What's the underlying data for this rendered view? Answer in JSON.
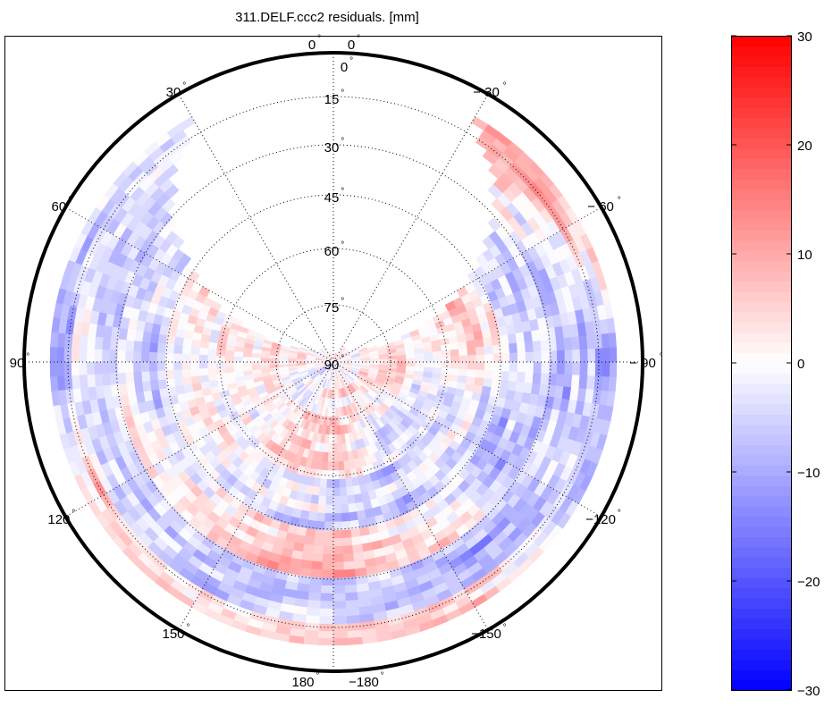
{
  "chart_data": {
    "type": "heatmap",
    "projection": "polar",
    "title": "311.DELF.ccc2 residuals. [mm]",
    "azimuth_ticks": [
      {
        "value": 0,
        "label": "0"
      },
      {
        "value": 30,
        "label": "30"
      },
      {
        "value": 60,
        "label": "60"
      },
      {
        "value": 90,
        "label": "90"
      },
      {
        "value": 120,
        "label": "120"
      },
      {
        "value": 150,
        "label": "150"
      },
      {
        "value": 180,
        "label": "180"
      },
      {
        "value": -150,
        "label": "−150"
      },
      {
        "value": -120,
        "label": "−120"
      },
      {
        "value": -90,
        "label": "− 90"
      },
      {
        "value": -60,
        "label": "− 60"
      },
      {
        "value": -30,
        "label": "− 30"
      }
    ],
    "azimuth_extra_labels": [
      {
        "value": 0,
        "label": "0"
      },
      {
        "value": 180,
        "label": "−180"
      }
    ],
    "elevation_ticks": [
      {
        "value": 0,
        "label": "0"
      },
      {
        "value": 15,
        "label": "15"
      },
      {
        "value": 30,
        "label": "30"
      },
      {
        "value": 45,
        "label": "45"
      },
      {
        "value": 60,
        "label": "60"
      },
      {
        "value": 75,
        "label": "75"
      },
      {
        "value": 90,
        "label": "90"
      }
    ],
    "degree_symbol": "°",
    "residual_grid": {
      "note": "approximate mean residual [mm] per elevation band (rows) and azimuth sector (cols)",
      "elevation_bands": [
        "0-15",
        "15-30",
        "30-45",
        "45-60",
        "60-75",
        "75-90"
      ],
      "azimuth_centers": [
        0,
        30,
        60,
        90,
        120,
        150,
        180,
        210,
        240,
        270,
        300,
        330
      ],
      "values": [
        [
          0,
          -3,
          -5,
          -12,
          8,
          3,
          5,
          6,
          -8,
          -10,
          5,
          8
        ],
        [
          0,
          -4,
          -6,
          -5,
          -4,
          -8,
          -5,
          -10,
          -6,
          -8,
          -4,
          10
        ],
        [
          0,
          2,
          -5,
          -3,
          -2,
          5,
          8,
          3,
          -10,
          -4,
          -6,
          3
        ],
        [
          0,
          3,
          4,
          -2,
          2,
          -3,
          -4,
          -6,
          -5,
          3,
          5,
          5
        ],
        [
          0,
          2,
          3,
          3,
          -2,
          4,
          5,
          -3,
          -2,
          2,
          4,
          2
        ],
        [
          2,
          2,
          1,
          2,
          -2,
          -3,
          3,
          2,
          1,
          2,
          2,
          2
        ]
      ]
    },
    "colorbar": {
      "range": [
        -30,
        30
      ],
      "ticks": [
        30,
        20,
        10,
        0,
        -10,
        -20,
        -30
      ],
      "tick_labels": [
        "30",
        "20",
        "10",
        "0",
        "−10",
        "−20",
        "−30"
      ],
      "colormap": {
        "low": "#0000ff",
        "mid": "#ffffff",
        "high": "#ff0000"
      },
      "levels": 64
    }
  }
}
